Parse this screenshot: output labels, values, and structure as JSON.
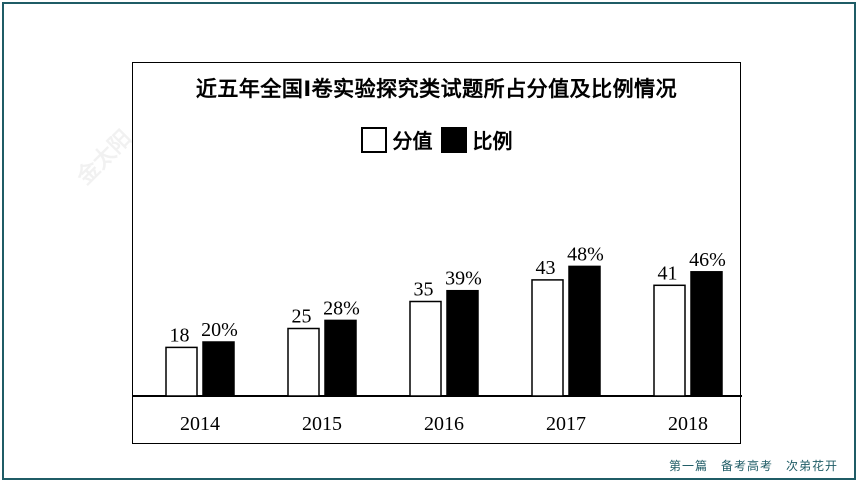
{
  "footer": {
    "text": "第一篇　备考高考　次弟花开"
  },
  "chart_data": {
    "type": "bar",
    "title": "近五年全国Ⅰ卷实验探究类试题所占分值及比例情况",
    "categories": [
      "2014",
      "2015",
      "2016",
      "2017",
      "2018"
    ],
    "series": [
      {
        "name": "分值",
        "values": [
          18,
          25,
          35,
          43,
          41
        ],
        "labels": [
          "18",
          "25",
          "35",
          "43",
          "41"
        ],
        "color": "#ffffff"
      },
      {
        "name": "比例",
        "values": [
          20,
          28,
          39,
          48,
          46
        ],
        "labels": [
          "20%",
          "28%",
          "39%",
          "48%",
          "46%"
        ],
        "color": "#000000"
      }
    ],
    "legend": "top-center",
    "grid": false
  }
}
